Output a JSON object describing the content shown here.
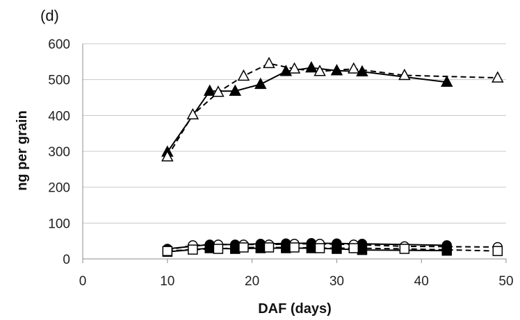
{
  "chart_data": {
    "type": "line",
    "panel_label": "(d)",
    "xlabel": "DAF (days)",
    "ylabel": "ng per grain",
    "xlim": [
      0,
      50
    ],
    "ylim": [
      0,
      600
    ],
    "x_ticks": [
      "0",
      "10",
      "20",
      "30",
      "40",
      "50"
    ],
    "y_ticks": [
      "0",
      "100",
      "200",
      "300",
      "400",
      "500",
      "600"
    ],
    "grid": "horizontal",
    "legend": "none",
    "series": [
      {
        "marker": "triangle-filled",
        "line": "solid",
        "x": [
          10,
          15,
          18,
          21,
          24,
          27,
          30,
          33,
          43
        ],
        "y": [
          298,
          468,
          468,
          487,
          523,
          533,
          525,
          522,
          493
        ]
      },
      {
        "marker": "triangle-open",
        "line": "dashed",
        "x": [
          10,
          13,
          16,
          19,
          22,
          25,
          28,
          32,
          38,
          49
        ],
        "y": [
          285,
          402,
          465,
          510,
          545,
          530,
          523,
          530,
          512,
          505
        ]
      },
      {
        "marker": "circle-filled",
        "line": "solid",
        "x": [
          10,
          15,
          18,
          21,
          24,
          27,
          30,
          33,
          43
        ],
        "y": [
          28,
          40,
          40,
          42,
          43,
          44,
          43,
          42,
          38
        ]
      },
      {
        "marker": "circle-open",
        "line": "dashed",
        "x": [
          10,
          13,
          16,
          19,
          22,
          25,
          28,
          32,
          38,
          49
        ],
        "y": [
          25,
          38,
          40,
          40,
          40,
          42,
          42,
          40,
          35,
          33
        ]
      },
      {
        "marker": "square-filled",
        "line": "solid",
        "x": [
          10,
          15,
          18,
          21,
          24,
          27,
          30,
          33,
          43
        ],
        "y": [
          20,
          30,
          28,
          30,
          30,
          30,
          28,
          25,
          23
        ]
      },
      {
        "marker": "square-open",
        "line": "dashed",
        "x": [
          10,
          13,
          16,
          19,
          22,
          25,
          28,
          32,
          38,
          49
        ],
        "y": [
          22,
          26,
          28,
          32,
          32,
          32,
          30,
          30,
          28,
          22
        ]
      }
    ]
  }
}
